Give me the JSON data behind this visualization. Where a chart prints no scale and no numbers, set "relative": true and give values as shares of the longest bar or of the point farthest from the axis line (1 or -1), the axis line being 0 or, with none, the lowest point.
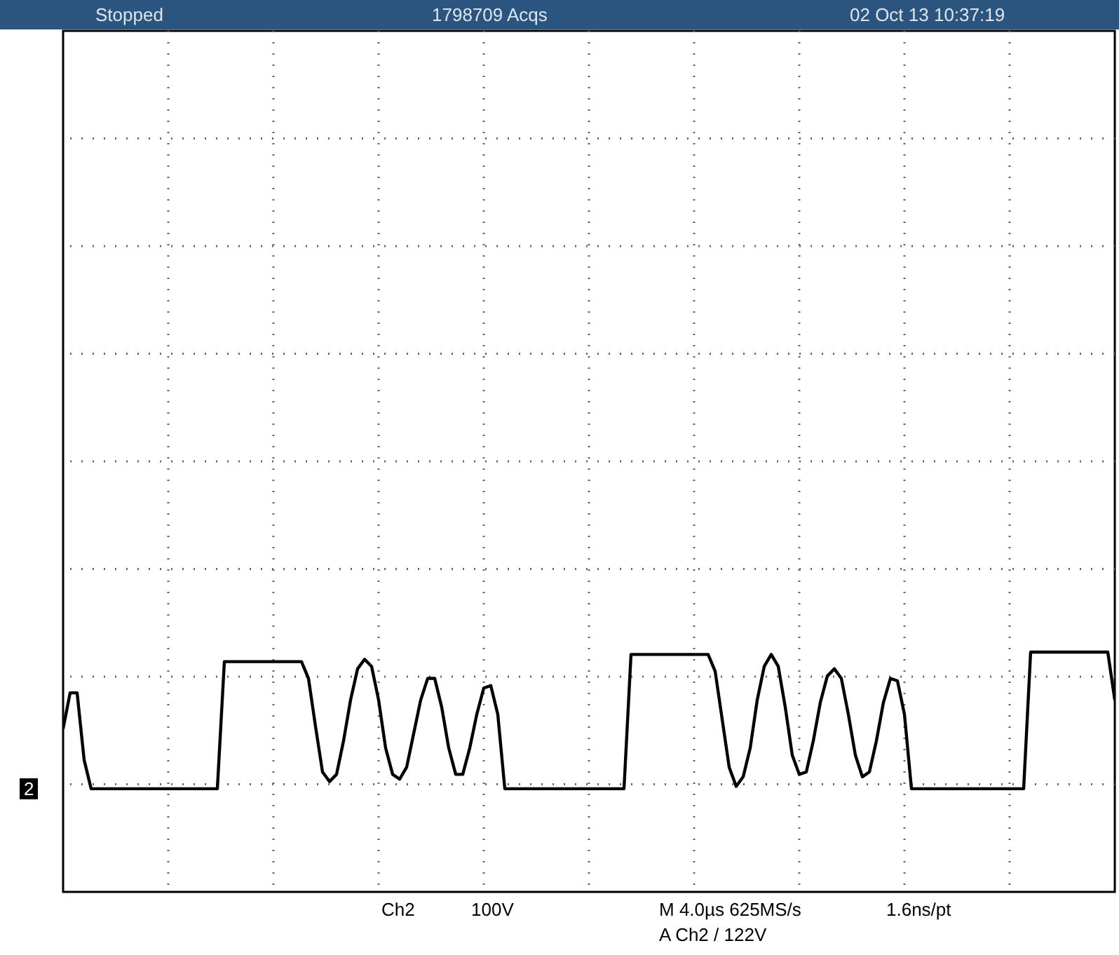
{
  "chart_data": {
    "type": "line",
    "relative": true,
    "grid": true,
    "annotations": [
      "Stopped",
      "1798709 Acqs",
      "02 Oct 13 10:37:19",
      "Ch2",
      "100V",
      "M 4.0µs 625MS/s",
      "1.6ns/pt",
      "A  Ch2  /  122V",
      "2"
    ],
    "categories": [
      null,
      null,
      null,
      null,
      null,
      null,
      null,
      null,
      null,
      null,
      null,
      null,
      null,
      null,
      null,
      null,
      null,
      null,
      null,
      null,
      null,
      null,
      null,
      null,
      null,
      null,
      null,
      null,
      null,
      null,
      null,
      null,
      null,
      null,
      null,
      null,
      null,
      null,
      null,
      null,
      null,
      null,
      null,
      null,
      null,
      null,
      null,
      null,
      null,
      null,
      null,
      null,
      null,
      null,
      null,
      null,
      null,
      null,
      null,
      null,
      null,
      null,
      null,
      null,
      null,
      null,
      null,
      null,
      null,
      null,
      null,
      null,
      null,
      null,
      null,
      null,
      null,
      null,
      null,
      null,
      null,
      null,
      null,
      null,
      null,
      null,
      null,
      null,
      null,
      null,
      null,
      null,
      null,
      null,
      null,
      null,
      null,
      null,
      null,
      null,
      null,
      null,
      null,
      null,
      null,
      null,
      null,
      null,
      null,
      null,
      null,
      null,
      null,
      null,
      null,
      null,
      null,
      null,
      null,
      null,
      null,
      null,
      null,
      null,
      null,
      null,
      null,
      null,
      null,
      null,
      null,
      null,
      null,
      null,
      null,
      null,
      null,
      null,
      null,
      null,
      null,
      null,
      null,
      null,
      null,
      null,
      null,
      null,
      null,
      null,
      null
    ],
    "series": [
      {
        "color": "#000000",
        "values": [
          0.68,
          0.83,
          0.83,
          0.55,
          0.43,
          0.43,
          0.43,
          0.43,
          0.43,
          0.43,
          0.43,
          0.43,
          0.43,
          0.43,
          0.43,
          0.43,
          0.43,
          0.43,
          0.43,
          0.43,
          0.43,
          0.43,
          0.43,
          0.96,
          0.96,
          0.96,
          0.96,
          0.96,
          0.96,
          0.96,
          0.96,
          0.96,
          0.96,
          0.96,
          0.96,
          0.89,
          0.69,
          0.5,
          0.46,
          0.49,
          0.63,
          0.8,
          0.93,
          0.97,
          0.94,
          0.8,
          0.6,
          0.49,
          0.47,
          0.52,
          0.66,
          0.8,
          0.89,
          0.89,
          0.77,
          0.6,
          0.49,
          0.49,
          0.6,
          0.74,
          0.85,
          0.86,
          0.74,
          0.43,
          0.43,
          0.43,
          0.43,
          0.43,
          0.43,
          0.43,
          0.43,
          0.43,
          0.43,
          0.43,
          0.43,
          0.43,
          0.43,
          0.43,
          0.43,
          0.43,
          0.43,
          0.99,
          0.99,
          0.99,
          0.99,
          0.99,
          0.99,
          0.99,
          0.99,
          0.99,
          0.99,
          0.99,
          0.99,
          0.92,
          0.72,
          0.52,
          0.44,
          0.48,
          0.6,
          0.8,
          0.94,
          0.99,
          0.94,
          0.77,
          0.57,
          0.49,
          0.5,
          0.63,
          0.79,
          0.9,
          0.93,
          0.89,
          0.74,
          0.57,
          0.48,
          0.5,
          0.63,
          0.79,
          0.89,
          0.88,
          0.74,
          0.43,
          0.43,
          0.43,
          0.43,
          0.43,
          0.43,
          0.43,
          0.43,
          0.43,
          0.43,
          0.43,
          0.43,
          0.43,
          0.43,
          0.43,
          0.43,
          0.43,
          1,
          1,
          1,
          1,
          1,
          1,
          1,
          1,
          1,
          1,
          1,
          1,
          0.8
        ]
      }
    ]
  }
}
